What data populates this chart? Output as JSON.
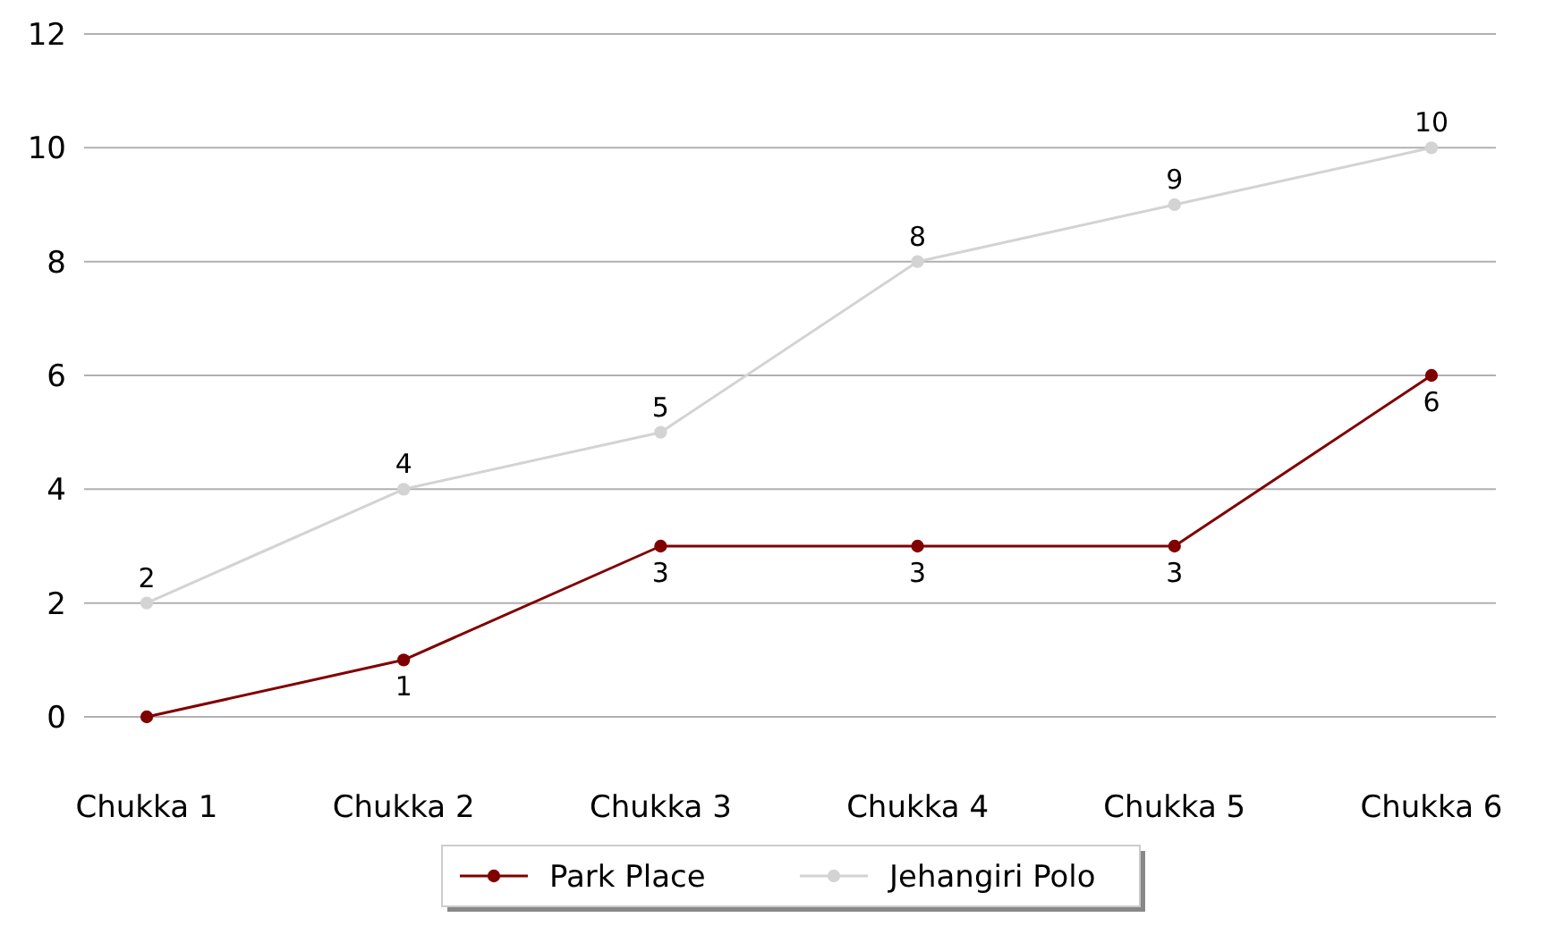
{
  "chart_data": {
    "type": "line",
    "categories": [
      "Chukka 1",
      "Chukka 2",
      "Chukka 3",
      "Chukka 4",
      "Chukka 5",
      "Chukka 6"
    ],
    "series": [
      {
        "name": "Park Place",
        "color": "#800000",
        "values": [
          0,
          1,
          3,
          3,
          3,
          6
        ],
        "value_labels": [
          null,
          "1",
          "3",
          "3",
          "3",
          "6"
        ]
      },
      {
        "name": "Jehangiri Polo",
        "color": "#d3d3d3",
        "values": [
          2,
          4,
          5,
          8,
          9,
          10
        ],
        "value_labels": [
          "2",
          "4",
          "5",
          "8",
          "9",
          "10"
        ]
      }
    ],
    "ylim": [
      0,
      12
    ],
    "yticks": [
      0,
      2,
      4,
      6,
      8,
      10,
      12
    ],
    "grid": "y",
    "legend": "bottom",
    "marker": "circle"
  }
}
